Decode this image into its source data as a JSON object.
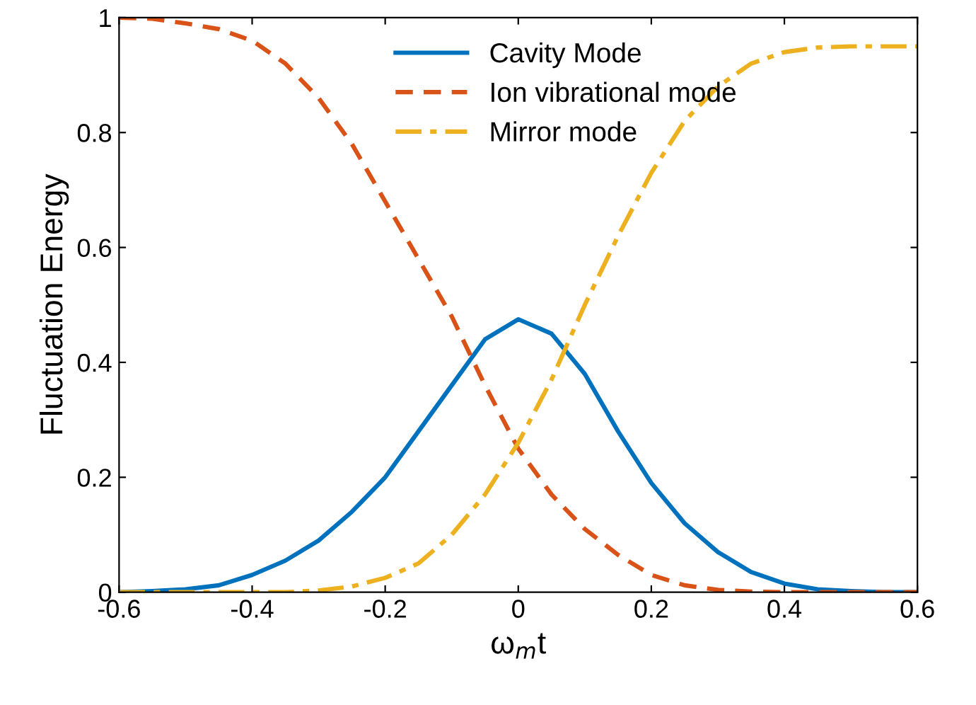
{
  "chart_data": {
    "type": "line",
    "xlabel": "ω$_{m}$t",
    "ylabel": "Fluctuation Energy",
    "x": [
      -0.6,
      -0.55,
      -0.5,
      -0.45,
      -0.4,
      -0.35,
      -0.3,
      -0.25,
      -0.2,
      -0.15,
      -0.1,
      -0.05,
      0,
      0.05,
      0.1,
      0.15,
      0.2,
      0.25,
      0.3,
      0.35,
      0.4,
      0.45,
      0.5,
      0.55,
      0.6
    ],
    "series": [
      {
        "name": "Cavity Mode",
        "color": "#0072bd",
        "line_style": "solid",
        "values": [
          0,
          0.002,
          0.005,
          0.012,
          0.03,
          0.055,
          0.09,
          0.14,
          0.2,
          0.28,
          0.36,
          0.44,
          0.475,
          0.45,
          0.38,
          0.28,
          0.19,
          0.12,
          0.07,
          0.035,
          0.015,
          0.005,
          0.002,
          0,
          0
        ]
      },
      {
        "name": "Ion vibrational mode",
        "color": "#d95319",
        "line_style": "dashed",
        "values": [
          1.0,
          0.998,
          0.99,
          0.98,
          0.96,
          0.92,
          0.86,
          0.78,
          0.68,
          0.58,
          0.48,
          0.36,
          0.25,
          0.17,
          0.11,
          0.065,
          0.03,
          0.012,
          0.004,
          0.001,
          0,
          0,
          0,
          0,
          0
        ]
      },
      {
        "name": "Mirror mode",
        "color": "#edb120",
        "line_style": "dashdot",
        "values": [
          0,
          0,
          0,
          0,
          0,
          0,
          0.003,
          0.01,
          0.025,
          0.05,
          0.1,
          0.17,
          0.26,
          0.37,
          0.5,
          0.62,
          0.73,
          0.82,
          0.88,
          0.92,
          0.94,
          0.948,
          0.95,
          0.95,
          0.95
        ]
      }
    ],
    "xlim": [
      -0.6,
      0.6
    ],
    "xticks": [
      -0.6,
      -0.4,
      -0.2,
      0,
      0.2,
      0.4,
      0.6
    ],
    "ylim": [
      0,
      1
    ],
    "yticks": [
      0,
      0.2,
      0.4,
      0.6,
      0.8,
      1
    ],
    "grid": false,
    "legend": "top",
    "marker": "none"
  }
}
